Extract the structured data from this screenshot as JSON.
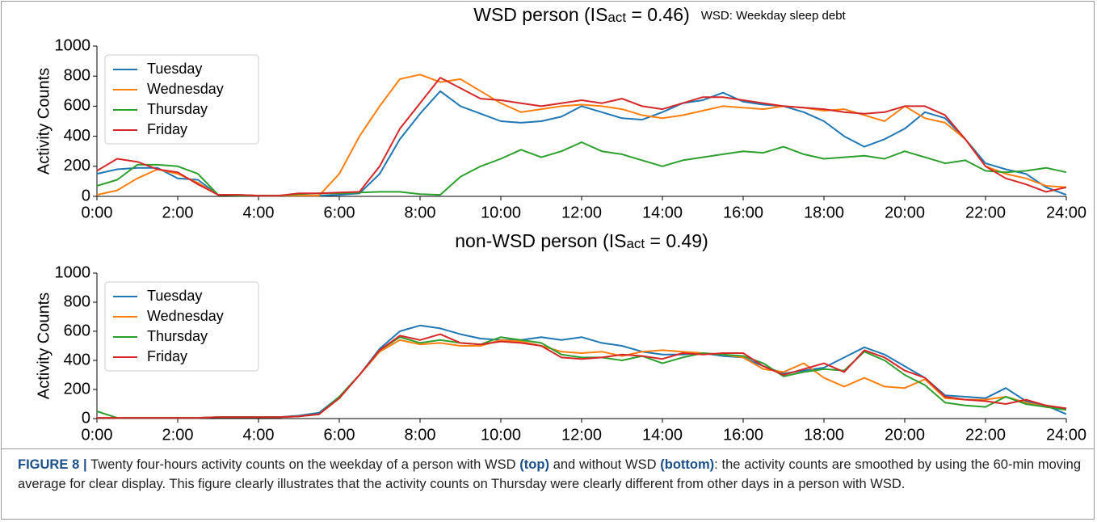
{
  "chart_data": [
    {
      "type": "line",
      "title_parts": [
        "WSD person (IS",
        "act",
        " = 0.46)"
      ],
      "annotation": "WSD: Weekday sleep debt",
      "ylabel": "Activity Counts",
      "x": [
        0,
        0.5,
        1,
        1.5,
        2,
        2.5,
        3,
        3.5,
        4,
        4.5,
        5,
        5.5,
        6,
        6.5,
        7,
        7.5,
        8,
        8.5,
        9,
        9.5,
        10,
        10.5,
        11,
        11.5,
        12,
        12.5,
        13,
        13.5,
        14,
        14.5,
        15,
        15.5,
        16,
        16.5,
        17,
        17.5,
        18,
        18.5,
        19,
        19.5,
        20,
        20.5,
        21,
        21.5,
        22,
        22.5,
        23,
        23.5,
        24
      ],
      "xlim": [
        0,
        24
      ],
      "xticks": [
        {
          "value": 0,
          "label": "0:00"
        },
        {
          "value": 2,
          "label": "2:00"
        },
        {
          "value": 4,
          "label": "4:00"
        },
        {
          "value": 6,
          "label": "6:00"
        },
        {
          "value": 8,
          "label": "8:00"
        },
        {
          "value": 10,
          "label": "10:00"
        },
        {
          "value": 12,
          "label": "12:00"
        },
        {
          "value": 14,
          "label": "14:00"
        },
        {
          "value": 16,
          "label": "16:00"
        },
        {
          "value": 18,
          "label": "18:00"
        },
        {
          "value": 20,
          "label": "20:00"
        },
        {
          "value": 22,
          "label": "22:00"
        },
        {
          "value": 24,
          "label": "24:00"
        }
      ],
      "ylim": [
        0,
        1000
      ],
      "yticks": [
        0,
        200,
        400,
        600,
        800,
        1000
      ],
      "legend": "upper left",
      "series": [
        {
          "name": "Tuesday",
          "color": "#1f77b4",
          "values": [
            150,
            180,
            190,
            190,
            120,
            110,
            10,
            10,
            5,
            5,
            5,
            5,
            10,
            20,
            150,
            380,
            550,
            700,
            600,
            550,
            500,
            490,
            500,
            530,
            600,
            560,
            520,
            510,
            560,
            620,
            640,
            690,
            630,
            610,
            600,
            560,
            500,
            400,
            330,
            380,
            450,
            560,
            520,
            380,
            220,
            180,
            150,
            60,
            10
          ]
        },
        {
          "name": "Wednesday",
          "color": "#ff7f0e",
          "values": [
            10,
            40,
            120,
            180,
            150,
            90,
            10,
            10,
            5,
            5,
            5,
            5,
            150,
            400,
            600,
            780,
            810,
            760,
            780,
            700,
            620,
            560,
            580,
            600,
            610,
            600,
            580,
            540,
            520,
            540,
            570,
            600,
            590,
            580,
            600,
            590,
            570,
            580,
            540,
            500,
            600,
            520,
            490,
            380,
            200,
            150,
            120,
            70,
            60
          ]
        },
        {
          "name": "Thursday",
          "color": "#2ca02c",
          "values": [
            70,
            110,
            210,
            210,
            200,
            150,
            10,
            5,
            5,
            5,
            15,
            20,
            20,
            25,
            30,
            30,
            15,
            10,
            130,
            200,
            250,
            310,
            260,
            300,
            360,
            300,
            280,
            240,
            200,
            240,
            260,
            280,
            300,
            290,
            330,
            280,
            250,
            260,
            270,
            250,
            300,
            260,
            220,
            240,
            170,
            160,
            170,
            190,
            160
          ]
        },
        {
          "name": "Friday",
          "color": "#d62728",
          "values": [
            170,
            250,
            230,
            180,
            160,
            80,
            10,
            10,
            5,
            5,
            20,
            20,
            25,
            30,
            200,
            450,
            620,
            790,
            720,
            650,
            640,
            620,
            600,
            620,
            640,
            620,
            650,
            600,
            580,
            620,
            660,
            660,
            640,
            620,
            600,
            590,
            580,
            560,
            550,
            560,
            600,
            600,
            540,
            380,
            200,
            120,
            80,
            30,
            60
          ]
        }
      ]
    },
    {
      "type": "line",
      "title_parts": [
        "non-WSD person (IS",
        "act",
        " = 0.49)"
      ],
      "ylabel": "Activity Counts",
      "x": [
        0,
        0.5,
        1,
        1.5,
        2,
        2.5,
        3,
        3.5,
        4,
        4.5,
        5,
        5.5,
        6,
        6.5,
        7,
        7.5,
        8,
        8.5,
        9,
        9.5,
        10,
        10.5,
        11,
        11.5,
        12,
        12.5,
        13,
        13.5,
        14,
        14.5,
        15,
        15.5,
        16,
        16.5,
        17,
        17.5,
        18,
        18.5,
        19,
        19.5,
        20,
        20.5,
        21,
        21.5,
        22,
        22.5,
        23,
        23.5,
        24
      ],
      "xlim": [
        0,
        24
      ],
      "xticks": [
        {
          "value": 0,
          "label": "0:00"
        },
        {
          "value": 2,
          "label": "2:00"
        },
        {
          "value": 4,
          "label": "4:00"
        },
        {
          "value": 6,
          "label": "6:00"
        },
        {
          "value": 8,
          "label": "8:00"
        },
        {
          "value": 10,
          "label": "10:00"
        },
        {
          "value": 12,
          "label": "12:00"
        },
        {
          "value": 14,
          "label": "14:00"
        },
        {
          "value": 16,
          "label": "16:00"
        },
        {
          "value": 18,
          "label": "18:00"
        },
        {
          "value": 20,
          "label": "20:00"
        },
        {
          "value": 22,
          "label": "22:00"
        },
        {
          "value": 24,
          "label": "24:00"
        }
      ],
      "ylim": [
        0,
        1000
      ],
      "yticks": [
        0,
        200,
        400,
        600,
        800,
        1000
      ],
      "legend": "upper left",
      "series": [
        {
          "name": "Tuesday",
          "color": "#1f77b4",
          "values": [
            5,
            5,
            5,
            5,
            5,
            5,
            10,
            10,
            10,
            10,
            20,
            40,
            150,
            300,
            480,
            600,
            640,
            620,
            580,
            550,
            540,
            540,
            560,
            540,
            560,
            520,
            500,
            460,
            440,
            440,
            450,
            430,
            420,
            360,
            310,
            330,
            350,
            420,
            490,
            440,
            360,
            280,
            160,
            150,
            140,
            210,
            120,
            90,
            30
          ]
        },
        {
          "name": "Wednesday",
          "color": "#ff7f0e",
          "values": [
            5,
            5,
            5,
            5,
            5,
            5,
            10,
            10,
            10,
            10,
            15,
            30,
            140,
            300,
            460,
            540,
            510,
            520,
            500,
            500,
            540,
            530,
            500,
            460,
            450,
            460,
            430,
            460,
            470,
            460,
            450,
            440,
            420,
            340,
            320,
            380,
            280,
            220,
            280,
            220,
            210,
            270,
            140,
            130,
            130,
            150,
            110,
            80,
            70
          ]
        },
        {
          "name": "Thursday",
          "color": "#2ca02c",
          "values": [
            50,
            5,
            5,
            5,
            5,
            5,
            10,
            10,
            10,
            10,
            15,
            30,
            150,
            300,
            470,
            560,
            520,
            540,
            520,
            510,
            560,
            540,
            520,
            440,
            420,
            420,
            400,
            430,
            380,
            420,
            450,
            440,
            430,
            380,
            290,
            320,
            340,
            330,
            460,
            400,
            300,
            230,
            110,
            90,
            80,
            150,
            100,
            80,
            60
          ]
        },
        {
          "name": "Friday",
          "color": "#d62728",
          "values": [
            5,
            5,
            5,
            5,
            5,
            5,
            10,
            10,
            10,
            10,
            15,
            30,
            140,
            300,
            470,
            570,
            540,
            580,
            520,
            510,
            530,
            520,
            500,
            420,
            410,
            420,
            440,
            430,
            410,
            450,
            440,
            450,
            450,
            360,
            300,
            340,
            380,
            320,
            470,
            420,
            330,
            280,
            150,
            130,
            120,
            100,
            130,
            90,
            70
          ]
        }
      ]
    }
  ],
  "caption": [
    {
      "text": "FIGURE 8 |",
      "bold": true
    },
    {
      "text": " Twenty four-hours activity counts on the weekday of a person with WSD ",
      "bold": false
    },
    {
      "text": "(top)",
      "bold": true
    },
    {
      "text": " and without WSD ",
      "bold": false
    },
    {
      "text": "(bottom)",
      "bold": true
    },
    {
      "text": ": the activity counts are smoothed by using the 60-min moving average for clear display. This figure clearly illustrates that the activity counts on Thursday were clearly different from other days in a person with WSD.",
      "bold": false
    }
  ]
}
